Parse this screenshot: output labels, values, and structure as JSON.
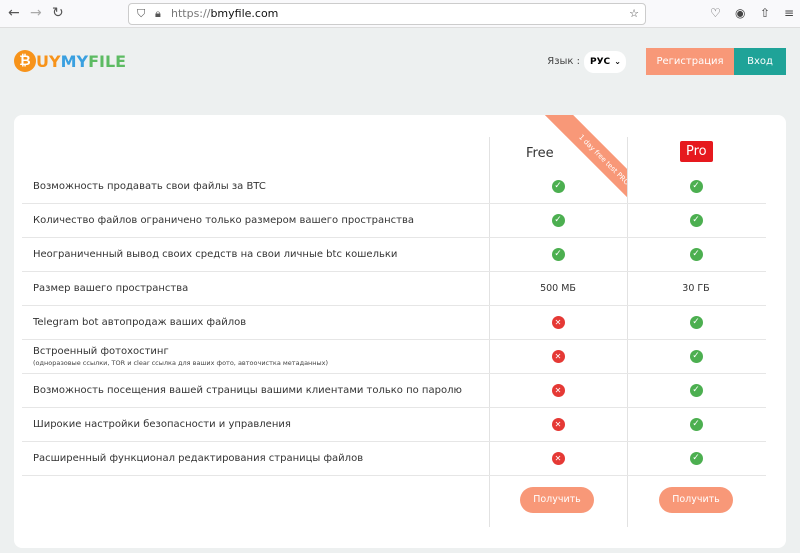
{
  "browser": {
    "url_prefix": "https://",
    "url_domain": "bmyfile.com"
  },
  "header": {
    "logo_b": "₿",
    "logo_uy": "UY",
    "logo_my": "MY",
    "logo_file": "FILE",
    "lang_label": "Язык :",
    "lang_value": "РУС",
    "register": "Регистрация",
    "login": "Вход"
  },
  "plans": {
    "free": "Free",
    "pro": "Pro",
    "ribbon": "1 day free test PRO",
    "get_label": "Получить"
  },
  "features": [
    {
      "label": "Возможность продавать свои файлы за BTC",
      "note": "",
      "free": "yes",
      "pro": "yes"
    },
    {
      "label": "Количество файлов ограничено только размером вашего пространства",
      "note": "",
      "free": "yes",
      "pro": "yes"
    },
    {
      "label": "Неограниченный вывод своих средств на свои личные btc кошельки",
      "note": "",
      "free": "yes",
      "pro": "yes"
    },
    {
      "label": "Размер вашего пространства",
      "note": "",
      "free": "500 МБ",
      "pro": "30 ГБ"
    },
    {
      "label": "Telegram bot автопродаж ваших файлов",
      "note": "",
      "free": "no",
      "pro": "yes"
    },
    {
      "label": "Встроенный фотохостинг",
      "note": "(одноразовые ссылки, TOR и clear ссылка для ваших фото, автоочистка метаданных)",
      "free": "no",
      "pro": "yes"
    },
    {
      "label": "Возможность посещения вашей страницы вашими клиентами только по паролю",
      "note": "",
      "free": "no",
      "pro": "yes"
    },
    {
      "label": "Широкие настройки безопасности и управления",
      "note": "",
      "free": "no",
      "pro": "yes"
    },
    {
      "label": "Расширенный функционал редактирования страницы файлов",
      "note": "",
      "free": "no",
      "pro": "yes"
    }
  ],
  "colors": {
    "accent": "#f89878",
    "teal": "#1fa398",
    "pro": "#e6191e",
    "ok": "#4caf50",
    "no": "#e53935"
  }
}
